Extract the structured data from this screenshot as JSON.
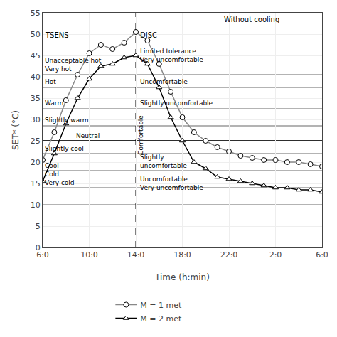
{
  "chart_data": {
    "type": "line",
    "x_label": "Time (h:min)",
    "y_label": "SET* (°C)",
    "x": [
      0,
      1,
      2,
      3,
      4,
      5,
      6,
      7,
      8,
      9,
      10,
      11,
      12,
      13,
      14,
      15,
      16,
      17,
      18,
      19,
      20,
      21,
      22,
      23,
      24
    ],
    "series": [
      {
        "name": "M = 1 met",
        "color": "#888888",
        "marker": "circle",
        "values": [
          20.5,
          27.0,
          34.5,
          40.5,
          45.5,
          47.5,
          46.5,
          48.0,
          50.5,
          48.5,
          43.0,
          36.5,
          30.5,
          27.0,
          25.0,
          23.5,
          22.5,
          21.5,
          21.0,
          20.5,
          20.5,
          20.0,
          20.0,
          19.5,
          19.0
        ]
      },
      {
        "name": "M = 2 met",
        "color": "#000000",
        "marker": "triangle-up",
        "values": [
          15.5,
          22.0,
          29.0,
          35.0,
          39.5,
          42.5,
          43.0,
          44.5,
          45.0,
          43.0,
          37.5,
          30.5,
          25.0,
          20.0,
          18.5,
          16.5,
          16.0,
          15.5,
          15.0,
          14.5,
          14.0,
          14.0,
          13.5,
          13.5,
          13.0
        ]
      }
    ],
    "xlim": [
      0,
      24
    ],
    "xticks": [
      {
        "value": 0,
        "label": "6:0"
      },
      {
        "value": 4,
        "label": "10:0"
      },
      {
        "value": 8,
        "label": "14:0"
      },
      {
        "value": 12,
        "label": "18:0"
      },
      {
        "value": 16,
        "label": "22:0"
      },
      {
        "value": 20,
        "label": "2:0"
      },
      {
        "value": 24,
        "label": "6:0"
      }
    ],
    "ylim": [
      0,
      55
    ],
    "yticks": [
      0,
      5,
      10,
      15,
      20,
      25,
      30,
      35,
      40,
      45,
      50,
      55
    ],
    "grid": true,
    "legend": "bottom",
    "hlines": [
      40.5,
      37.5,
      32.5,
      28.5,
      25.0,
      22.0,
      18.0,
      14.0,
      10.0
    ],
    "neutral_line": 25.0,
    "vline": 8,
    "zone_labels": [
      {
        "x": 0.15,
        "y": 40.8,
        "text": "Unacceptable hot\nVery hot"
      },
      {
        "x": 0.15,
        "y": 37.8,
        "text": "Hot"
      },
      {
        "x": 0.15,
        "y": 32.8,
        "text": "Warm"
      },
      {
        "x": 0.15,
        "y": 28.8,
        "text": "Slightly warm"
      },
      {
        "x": 2.8,
        "y": 25.2,
        "text": "Neutral"
      },
      {
        "x": 0.15,
        "y": 22.2,
        "text": "Slightly cool"
      },
      {
        "x": 0.15,
        "y": 18.2,
        "text": "Cool"
      },
      {
        "x": 0.15,
        "y": 14.2,
        "text": "Cold\nVery cold"
      },
      {
        "x": 8.3,
        "y": 43.0,
        "text": "Limited tolerance\nVery uncomfortable"
      },
      {
        "x": 8.3,
        "y": 37.8,
        "text": "Uncomfortable"
      },
      {
        "x": 8.3,
        "y": 32.8,
        "text": "Slightly uncomfortable"
      },
      {
        "x": 8.3,
        "y": 18.2,
        "text": "Slightly\nuncomfortable"
      },
      {
        "x": 8.3,
        "y": 13.0,
        "text": "Uncomfortable\nVery uncomfortable"
      }
    ],
    "annotations": [
      {
        "text": "TSENS",
        "x": 0.15,
        "y": 49.8
      },
      {
        "text": "DISC",
        "x": 8.3,
        "y": 49.8
      },
      {
        "text": "Without cooling",
        "x": 15.5,
        "y": 53.5
      }
    ],
    "vertical_annotations": [
      {
        "text": "Comfortable",
        "x": 8.05,
        "y": 21.5
      }
    ]
  }
}
